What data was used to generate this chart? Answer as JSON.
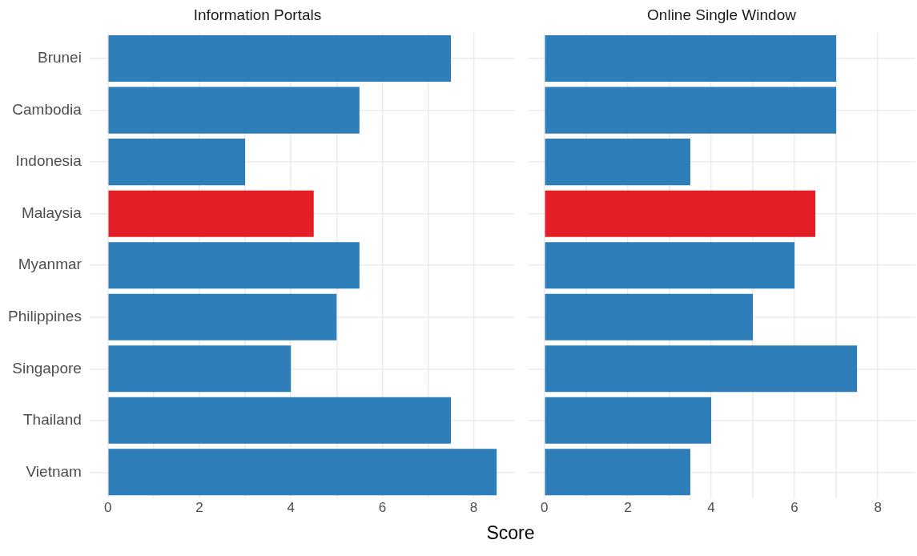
{
  "chart_data": [
    {
      "type": "bar",
      "title": "Information Portals",
      "orientation": "horizontal",
      "categories": [
        "Brunei",
        "Cambodia",
        "Indonesia",
        "Malaysia",
        "Myanmar",
        "Philippines",
        "Singapore",
        "Thailand",
        "Vietnam"
      ],
      "values": [
        7.5,
        5.5,
        3,
        4.5,
        5.5,
        5,
        4,
        7.5,
        8.5
      ],
      "colors": [
        "#2e7eb9",
        "#2e7eb9",
        "#2e7eb9",
        "#e41e26",
        "#2e7eb9",
        "#2e7eb9",
        "#2e7eb9",
        "#2e7eb9",
        "#2e7eb9"
      ],
      "xlim": [
        -0.4,
        8.9
      ],
      "xticks": [
        0,
        {
          "value": 1,
          "label": null
        },
        2,
        {
          "value": 3,
          "label": null
        },
        4,
        {
          "value": 5,
          "label": null
        },
        6,
        {
          "value": 7,
          "label": null
        },
        8
      ],
      "xlabel": "Score",
      "grid": true,
      "legend": false
    },
    {
      "type": "bar",
      "title": "Online Single Window",
      "orientation": "horizontal",
      "categories": [
        null,
        null,
        null,
        null,
        null,
        null,
        null,
        null,
        null
      ],
      "values": [
        7,
        7,
        3.5,
        6.5,
        6,
        5,
        7.5,
        4,
        3.5
      ],
      "colors": [
        "#2e7eb9",
        "#2e7eb9",
        "#2e7eb9",
        "#e41e26",
        "#2e7eb9",
        "#2e7eb9",
        "#2e7eb9",
        "#2e7eb9",
        "#2e7eb9"
      ],
      "xlim": [
        -0.4,
        8.9
      ],
      "xticks": [
        0,
        {
          "value": 1,
          "label": null
        },
        2,
        {
          "value": 3,
          "label": null
        },
        4,
        {
          "value": 5,
          "label": null
        },
        6,
        {
          "value": 7,
          "label": null
        },
        8
      ],
      "tick_labels": "x",
      "grid": true,
      "legend": false
    }
  ]
}
